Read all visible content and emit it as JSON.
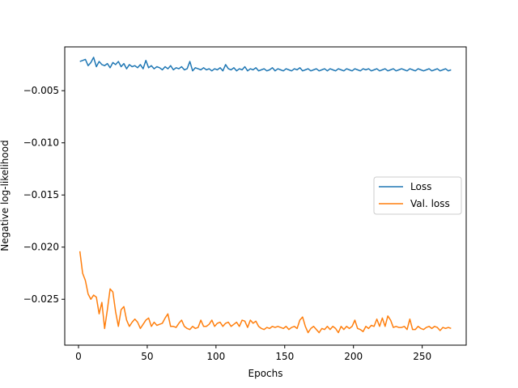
{
  "chart_data": {
    "type": "line",
    "title": "",
    "xlabel": "Epochs",
    "ylabel": "Negative log-likelihood",
    "xlim": [
      -10,
      282
    ],
    "ylim": [
      -0.0294,
      -0.0008
    ],
    "xticks": [
      0,
      50,
      100,
      150,
      200,
      250
    ],
    "xtick_labels": [
      "0",
      "50",
      "100",
      "150",
      "200",
      "250"
    ],
    "yticks": [
      -0.005,
      -0.01,
      -0.015,
      -0.02,
      -0.025
    ],
    "ytick_labels": [
      "−0.005",
      "−0.010",
      "−0.015",
      "−0.020",
      "−0.025"
    ],
    "grid": false,
    "legend_position": "center-right",
    "series": [
      {
        "name": "Loss",
        "color": "#1f77b4",
        "x": [
          1,
          3,
          5,
          7,
          9,
          11,
          13,
          15,
          17,
          19,
          21,
          23,
          25,
          27,
          29,
          31,
          33,
          35,
          37,
          39,
          41,
          43,
          45,
          47,
          49,
          51,
          53,
          55,
          57,
          59,
          61,
          63,
          65,
          67,
          69,
          71,
          73,
          75,
          77,
          79,
          81,
          83,
          85,
          87,
          89,
          91,
          93,
          95,
          97,
          99,
          101,
          103,
          105,
          107,
          109,
          111,
          113,
          115,
          117,
          119,
          121,
          123,
          125,
          127,
          129,
          131,
          133,
          135,
          137,
          139,
          141,
          143,
          145,
          147,
          149,
          151,
          153,
          155,
          157,
          159,
          161,
          163,
          165,
          167,
          169,
          171,
          173,
          175,
          177,
          179,
          181,
          183,
          185,
          187,
          189,
          191,
          193,
          195,
          197,
          199,
          201,
          203,
          205,
          207,
          209,
          211,
          213,
          215,
          217,
          219,
          221,
          223,
          225,
          227,
          229,
          231,
          233,
          235,
          237,
          239,
          241,
          243,
          245,
          247,
          249,
          251,
          253,
          255,
          257,
          259,
          261,
          263,
          265,
          267,
          269,
          271
        ],
        "values": [
          -0.0022,
          -0.0021,
          -0.002,
          -0.0026,
          -0.0023,
          -0.0018,
          -0.0027,
          -0.0022,
          -0.0025,
          -0.0026,
          -0.0024,
          -0.0028,
          -0.0023,
          -0.0025,
          -0.0022,
          -0.0027,
          -0.0024,
          -0.0029,
          -0.0025,
          -0.0027,
          -0.0026,
          -0.0028,
          -0.0025,
          -0.0029,
          -0.0021,
          -0.0028,
          -0.0026,
          -0.0029,
          -0.0027,
          -0.0028,
          -0.003,
          -0.0027,
          -0.0029,
          -0.0026,
          -0.003,
          -0.0028,
          -0.0029,
          -0.0027,
          -0.003,
          -0.0029,
          -0.0022,
          -0.0031,
          -0.0028,
          -0.0029,
          -0.003,
          -0.0028,
          -0.003,
          -0.0029,
          -0.0031,
          -0.0029,
          -0.003,
          -0.0028,
          -0.0031,
          -0.0025,
          -0.0029,
          -0.003,
          -0.0028,
          -0.0031,
          -0.0029,
          -0.003,
          -0.0027,
          -0.0031,
          -0.0029,
          -0.003,
          -0.0028,
          -0.0031,
          -0.003,
          -0.0029,
          -0.0031,
          -0.003,
          -0.0028,
          -0.0031,
          -0.0029,
          -0.003,
          -0.0031,
          -0.0029,
          -0.003,
          -0.0031,
          -0.0029,
          -0.003,
          -0.0028,
          -0.0031,
          -0.003,
          -0.0029,
          -0.0031,
          -0.003,
          -0.0029,
          -0.0031,
          -0.003,
          -0.0029,
          -0.0031,
          -0.0029,
          -0.003,
          -0.0031,
          -0.0029,
          -0.003,
          -0.0031,
          -0.0029,
          -0.003,
          -0.0031,
          -0.0029,
          -0.003,
          -0.0031,
          -0.0029,
          -0.003,
          -0.0029,
          -0.0031,
          -0.003,
          -0.0029,
          -0.0031,
          -0.003,
          -0.0029,
          -0.0031,
          -0.003,
          -0.0029,
          -0.0031,
          -0.003,
          -0.0029,
          -0.003,
          -0.0031,
          -0.0029,
          -0.003,
          -0.0031,
          -0.0029,
          -0.003,
          -0.0031,
          -0.003,
          -0.0029,
          -0.0031,
          -0.003,
          -0.0029,
          -0.0031,
          -0.003,
          -0.0029,
          -0.0031,
          -0.003
        ]
      },
      {
        "name": "Val. loss",
        "color": "#ff7f0e",
        "x": [
          1,
          3,
          5,
          7,
          9,
          11,
          13,
          15,
          17,
          19,
          21,
          23,
          25,
          27,
          29,
          31,
          33,
          35,
          37,
          39,
          41,
          43,
          45,
          47,
          49,
          51,
          53,
          55,
          57,
          59,
          61,
          63,
          65,
          67,
          69,
          71,
          73,
          75,
          77,
          79,
          81,
          83,
          85,
          87,
          89,
          91,
          93,
          95,
          97,
          99,
          101,
          103,
          105,
          107,
          109,
          111,
          113,
          115,
          117,
          119,
          121,
          123,
          125,
          127,
          129,
          131,
          133,
          135,
          137,
          139,
          141,
          143,
          145,
          147,
          149,
          151,
          153,
          155,
          157,
          159,
          161,
          163,
          165,
          167,
          169,
          171,
          173,
          175,
          177,
          179,
          181,
          183,
          185,
          187,
          189,
          191,
          193,
          195,
          197,
          199,
          201,
          203,
          205,
          207,
          209,
          211,
          213,
          215,
          217,
          219,
          221,
          223,
          225,
          227,
          229,
          231,
          233,
          235,
          237,
          239,
          241,
          243,
          245,
          247,
          249,
          251,
          253,
          255,
          257,
          259,
          261,
          263,
          265,
          267,
          269,
          271
        ],
        "values": [
          -0.0204,
          -0.0225,
          -0.0232,
          -0.0245,
          -0.025,
          -0.0246,
          -0.0248,
          -0.0264,
          -0.0253,
          -0.0278,
          -0.026,
          -0.024,
          -0.0243,
          -0.0262,
          -0.0276,
          -0.026,
          -0.0257,
          -0.027,
          -0.0276,
          -0.0272,
          -0.0269,
          -0.0272,
          -0.0278,
          -0.0274,
          -0.027,
          -0.0268,
          -0.0276,
          -0.0272,
          -0.0275,
          -0.0274,
          -0.0273,
          -0.0268,
          -0.0264,
          -0.0276,
          -0.0276,
          -0.0277,
          -0.0273,
          -0.027,
          -0.0276,
          -0.0278,
          -0.0279,
          -0.0276,
          -0.0278,
          -0.0277,
          -0.027,
          -0.0276,
          -0.0276,
          -0.0274,
          -0.027,
          -0.0276,
          -0.0273,
          -0.0272,
          -0.0276,
          -0.0273,
          -0.0272,
          -0.0276,
          -0.0274,
          -0.0272,
          -0.0276,
          -0.027,
          -0.0271,
          -0.0277,
          -0.027,
          -0.0273,
          -0.0271,
          -0.0276,
          -0.0278,
          -0.0279,
          -0.0277,
          -0.0278,
          -0.0276,
          -0.0277,
          -0.0276,
          -0.0277,
          -0.0278,
          -0.0276,
          -0.0279,
          -0.0277,
          -0.0276,
          -0.0278,
          -0.027,
          -0.0267,
          -0.0276,
          -0.0282,
          -0.0278,
          -0.0276,
          -0.0279,
          -0.0282,
          -0.0278,
          -0.0279,
          -0.0276,
          -0.0279,
          -0.0276,
          -0.0278,
          -0.0282,
          -0.0276,
          -0.0279,
          -0.0276,
          -0.0278,
          -0.0276,
          -0.027,
          -0.0278,
          -0.0279,
          -0.0281,
          -0.0276,
          -0.0278,
          -0.0275,
          -0.0276,
          -0.0269,
          -0.0276,
          -0.0268,
          -0.0276,
          -0.0266,
          -0.027,
          -0.0277,
          -0.0276,
          -0.0277,
          -0.0277,
          -0.0276,
          -0.0279,
          -0.0269,
          -0.0279,
          -0.0279,
          -0.0276,
          -0.0278,
          -0.0279,
          -0.0277,
          -0.0276,
          -0.0278,
          -0.0276,
          -0.0277,
          -0.028,
          -0.0277,
          -0.0278,
          -0.0277,
          -0.0278
        ]
      }
    ]
  }
}
